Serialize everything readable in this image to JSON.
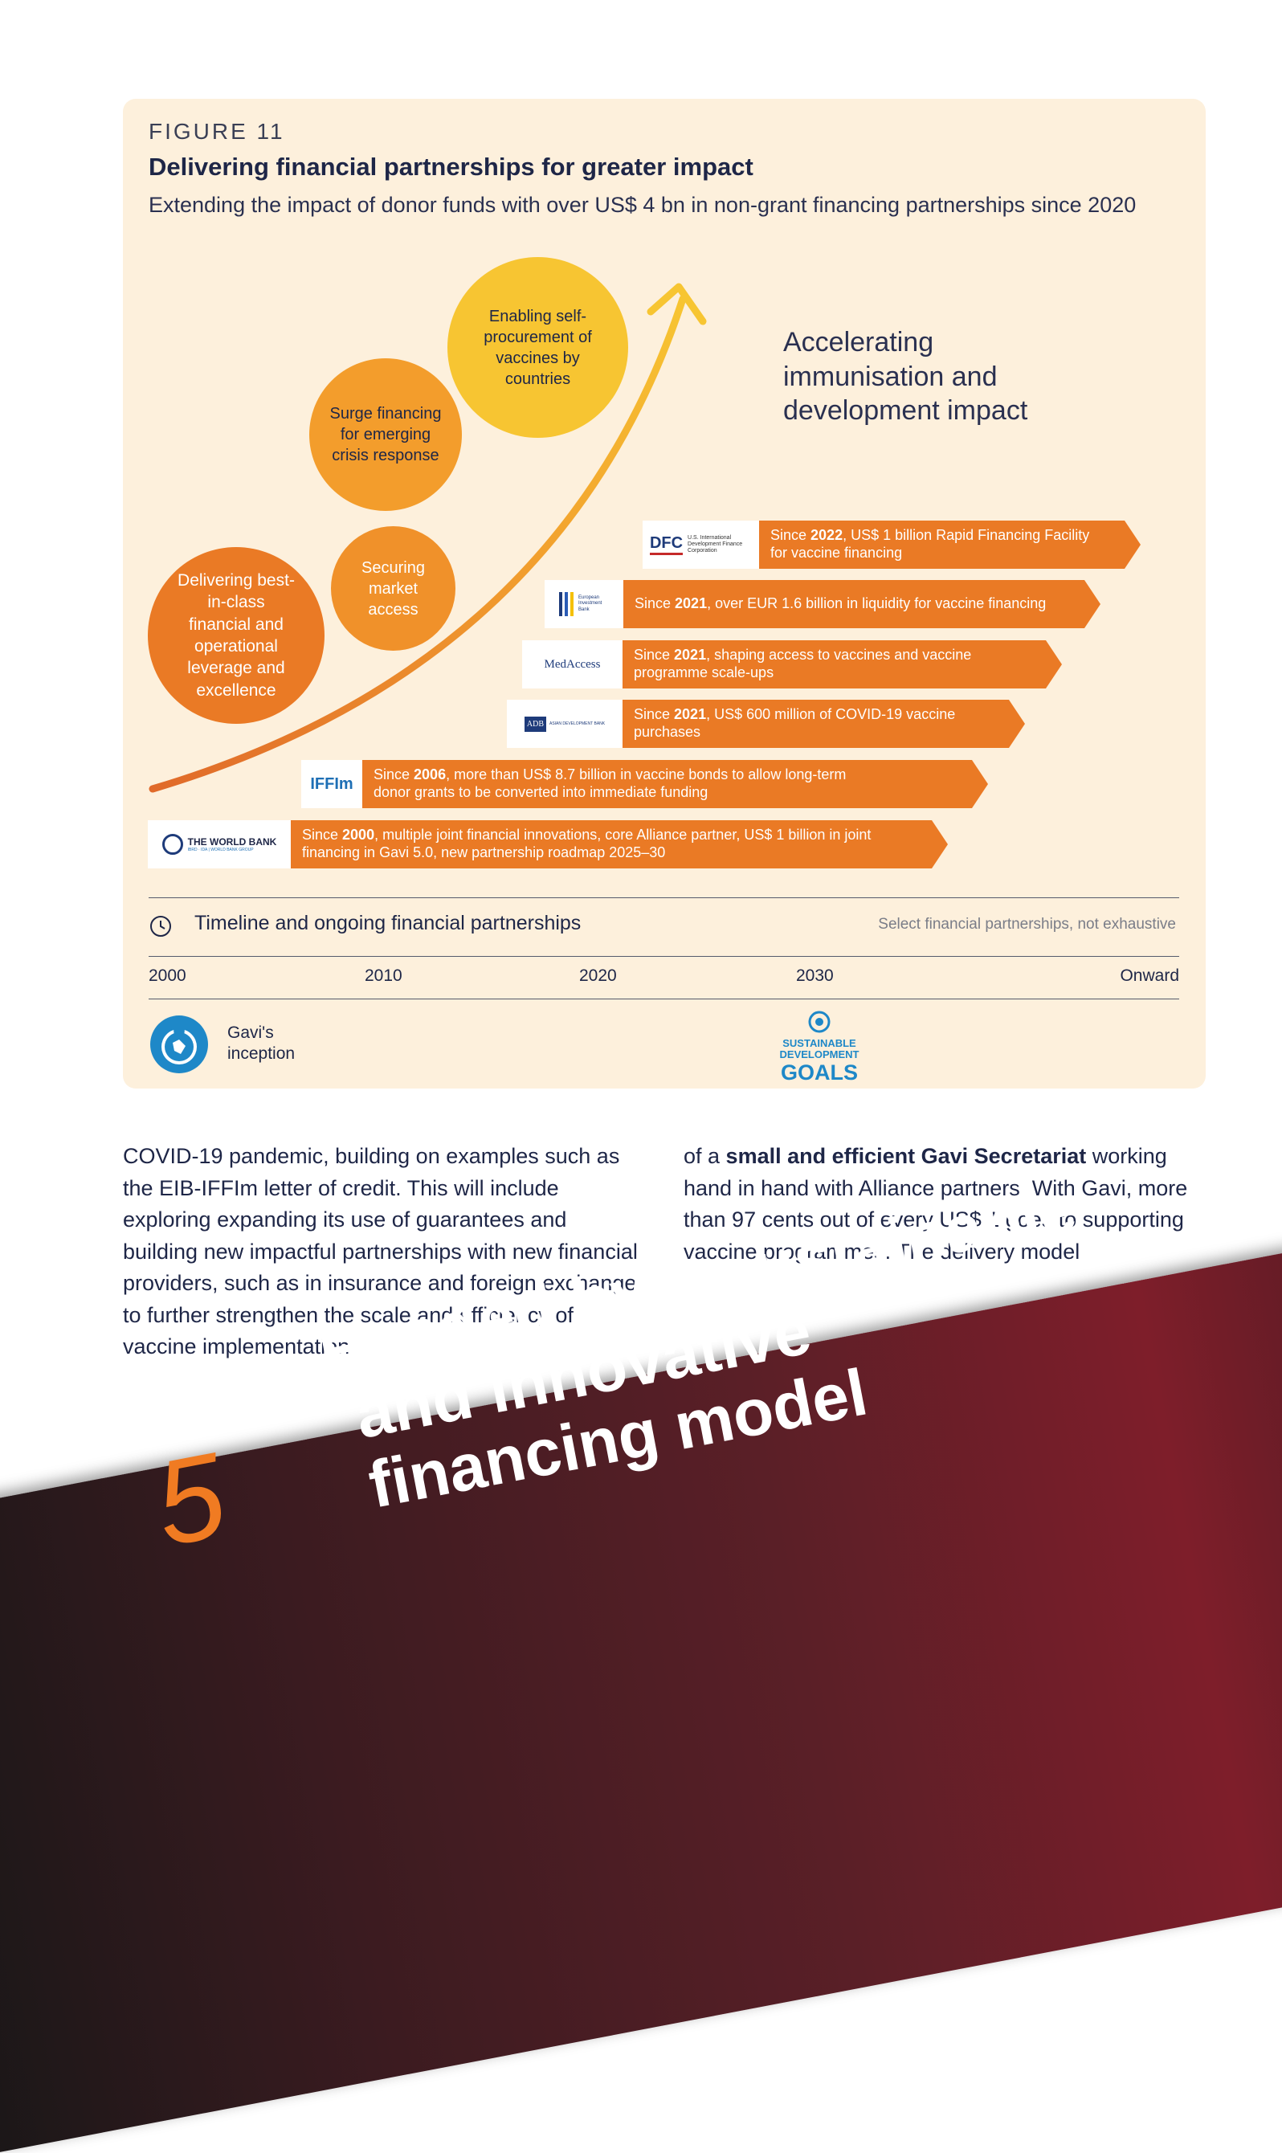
{
  "figure": {
    "label": "FIGURE 11",
    "title": "Delivering financial partnerships for greater impact",
    "subtitle": "Extending the impact of donor funds with over US$ 4 bn in non-grant financing partnerships since 2020"
  },
  "circles": [
    {
      "text": "Delivering best-in-class financial and operational leverage and excellence"
    },
    {
      "text": "Securing market access"
    },
    {
      "text": "Surge financing for emerging crisis response"
    },
    {
      "text": "Enabling self-procurement of vaccines by countries"
    }
  ],
  "accelerating": "Accelerating immunisation and development impact",
  "partnerships": [
    {
      "logo": "DFC",
      "logo_sub": "U.S. International Development Finance Corporation",
      "pre": "Since ",
      "year": "2022",
      "post": ", US$ 1 billion Rapid Financing Facility for vaccine financing"
    },
    {
      "logo": "European Investment Bank",
      "logo_sub": "",
      "pre": "Since ",
      "year": "2021",
      "post": ", over EUR 1.6 billion in liquidity for vaccine financing"
    },
    {
      "logo": "MedAccess",
      "logo_sub": "",
      "pre": "Since ",
      "year": "2021",
      "post": ", shaping access to vaccines and vaccine programme scale-ups"
    },
    {
      "logo": "ADB",
      "logo_sub": "ASIAN DEVELOPMENT BANK",
      "pre": "Since ",
      "year": "2021",
      "post": ", US$ 600 million of COVID-19 vaccine purchases"
    },
    {
      "logo": "IFFIm",
      "logo_sub": "",
      "pre": "Since ",
      "year": "2006",
      "post": ", more than US$ 8.7 billion in vaccine bonds to allow long-term donor grants to be  converted into immediate funding"
    },
    {
      "logo": "THE WORLD BANK",
      "logo_sub": "IBRD · IDA | WORLD BANK GROUP",
      "pre": "Since ",
      "year": "2000",
      "post": ", multiple joint financial innovations, core Alliance partner, US$ 1 billion in joint financing in Gavi 5.0, new partnership roadmap 2025–30"
    }
  ],
  "timeline": {
    "title": "Timeline and ongoing financial partnerships",
    "note": "Select financial partnerships, not exhaustive",
    "years": [
      "2000",
      "2010",
      "2020",
      "2030",
      "Onward"
    ],
    "gavi": "Gavi's inception",
    "sdg": {
      "line1": "SUSTAINABLE",
      "line2": "DEVELOPMENT",
      "line3": "GOALS"
    }
  },
  "body": {
    "left": "COVID-19 pandemic, building on examples such as the EIB-IFFIm letter of credit. This will include exploring expanding its use of guarantees and building new impactful partnerships with new financial providers, such as in insurance and foreign exchange, to further strengthen the scale and efficiency of vaccine implementation",
    "right_pre": "of a ",
    "right_bold": "small and efficient Gavi Secretariat",
    "right_post": " working hand in hand with Alliance partners. With Gavi, more than 97 cents out of every US$ 1 goes to supporting vaccine programmes. The delivery model"
  },
  "chapter": {
    "number": "5",
    "line1": "Funded by a sustainable",
    "line2": "and innovative",
    "line3": "financing model"
  },
  "colors": {
    "orange": "#ea7a25",
    "panel": "#fdf0dc",
    "navy": "#1e2647"
  }
}
